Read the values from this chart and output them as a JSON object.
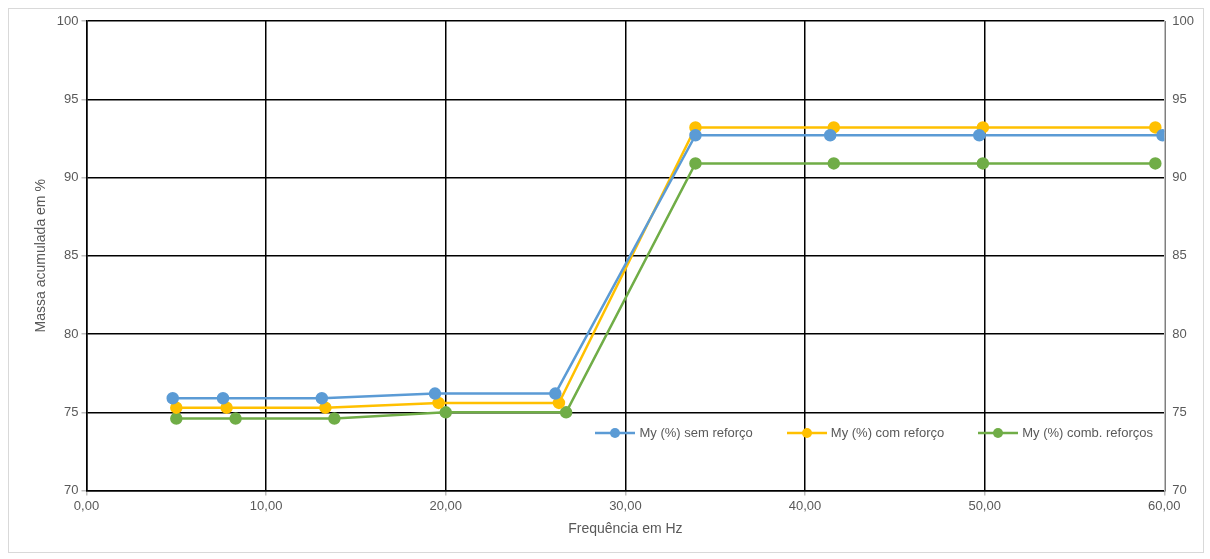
{
  "chart_data": {
    "type": "line",
    "xlabel": "Frequência em Hz",
    "ylabel": "Massa acumulada em %",
    "xlim": [
      0,
      60
    ],
    "xticks": [
      {
        "value": 0,
        "label": "0,00"
      },
      {
        "value": 10,
        "label": "10,00"
      },
      {
        "value": 20,
        "label": "20,00"
      },
      {
        "value": 30,
        "label": "30,00"
      },
      {
        "value": 40,
        "label": "40,00"
      },
      {
        "value": 50,
        "label": "50,00"
      },
      {
        "value": 60,
        "label": "60,00"
      }
    ],
    "ylim": [
      70,
      100
    ],
    "yticks": [
      70,
      75,
      80,
      85,
      90,
      95,
      100
    ],
    "y2lim": [
      70,
      100
    ],
    "y2ticks": [
      70,
      75,
      80,
      85,
      90,
      95,
      100
    ],
    "grid": true,
    "legend": "bottom right",
    "marker": "circle",
    "line_style": "solid",
    "series": [
      {
        "name": "My (%) sem reforço",
        "color": "#5b9bd5",
        "x": [
          4.8,
          7.6,
          13.1,
          19.4,
          26.1,
          33.9,
          41.4,
          49.7,
          59.9
        ],
        "values": [
          75.9,
          75.9,
          75.9,
          76.2,
          76.2,
          92.7,
          92.7,
          92.7,
          92.7
        ]
      },
      {
        "name": "My (%) com reforço",
        "color": "#ffc000",
        "x": [
          5.0,
          7.8,
          13.3,
          19.6,
          26.3,
          33.9,
          41.6,
          49.9,
          59.5
        ],
        "values": [
          75.3,
          75.3,
          75.3,
          75.6,
          75.6,
          93.2,
          93.2,
          93.2,
          93.2
        ]
      },
      {
        "name": "My (%) comb. reforços",
        "color": "#70ad47",
        "x": [
          5.0,
          8.3,
          13.8,
          20.0,
          26.7,
          33.9,
          41.6,
          49.9,
          59.5
        ],
        "values": [
          74.6,
          74.6,
          74.6,
          75.0,
          75.0,
          90.9,
          90.9,
          90.9,
          90.9
        ]
      }
    ]
  }
}
